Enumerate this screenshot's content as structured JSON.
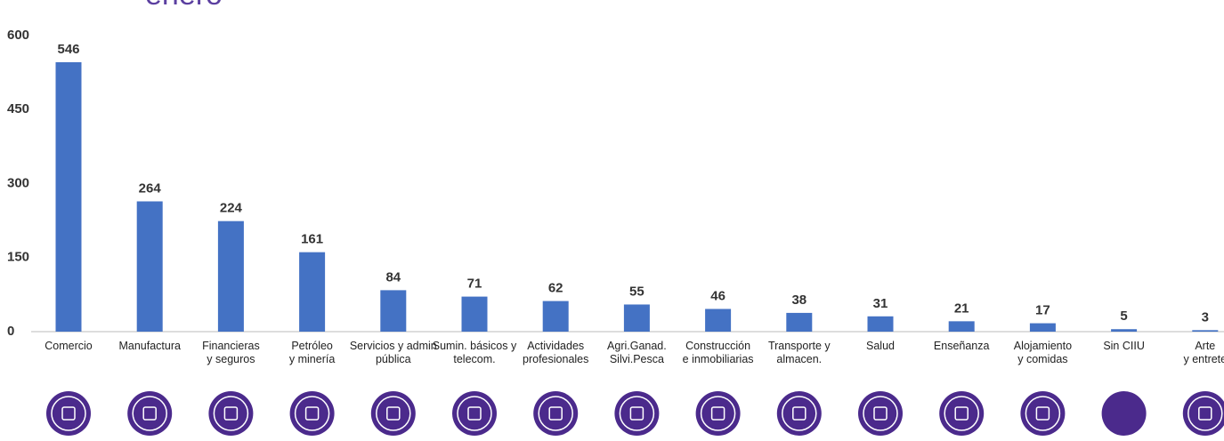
{
  "chart_data": {
    "type": "bar",
    "title": "enero",
    "categories": [
      "Comercio",
      "Manufactura",
      "Financieras\ny seguros",
      "Petróleo\ny minería",
      "Servicios y admin\npública",
      "Sumin. básicos y\ntelecom.",
      "Actividades\nprofesionales",
      "Agri.Ganad.\nSilvi.Pesca",
      "Construcción\ne inmobiliarias",
      "Transporte y\nalmacen.",
      "Salud",
      "Enseñanza",
      "Alojamiento\ny comidas",
      "Sin CIIU",
      "Arte\ny entrete"
    ],
    "values": [
      546,
      264,
      224,
      161,
      84,
      71,
      62,
      55,
      46,
      38,
      31,
      21,
      17,
      5,
      3
    ],
    "color": "#4472c4",
    "ylim": [
      0,
      600
    ],
    "yticks": [
      0,
      150,
      300,
      450,
      600
    ]
  }
}
